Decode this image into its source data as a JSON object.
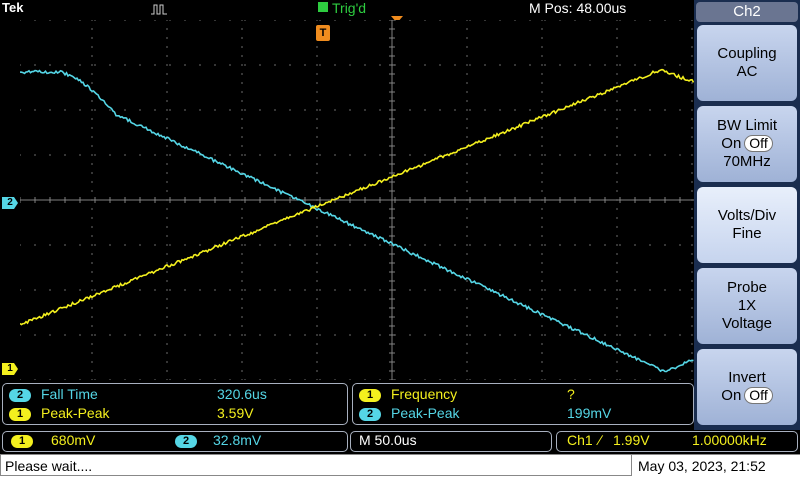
{
  "topbar": {
    "brand": "Tek",
    "trigger_status": "Trig'd",
    "horizontal_position": "M Pos: 48.00us"
  },
  "markers": {
    "trigger_marker": "T",
    "ch1_marker": "1",
    "ch2_marker": "2"
  },
  "colors": {
    "ch1": "#f4f01e",
    "ch2": "#55d6e6",
    "trigger": "#f08c1e",
    "trig_status": "#2ecc40",
    "grid": "#808080",
    "menu_bg": "#1a2d4f"
  },
  "measurements": {
    "left": [
      {
        "channel": "2",
        "label": "Fall Time",
        "value": "320.6us"
      },
      {
        "channel": "1",
        "label": "Peak-Peak",
        "value": "3.59V"
      }
    ],
    "right": [
      {
        "channel": "1",
        "label": "Frequency",
        "value": "?"
      },
      {
        "channel": "2",
        "label": "Peak-Peak",
        "value": "199mV"
      }
    ]
  },
  "scales": {
    "ch1_badge": "1",
    "ch1_scale": "680mV",
    "ch2_badge": "2",
    "ch2_scale": "32.8mV",
    "timebase": "M 50.0us",
    "trigger_source": "Ch1",
    "trigger_slope": "∕",
    "trigger_level": "1.99V",
    "trigger_frequency": "1.00000kHz"
  },
  "status": {
    "message": "Please wait....",
    "datetime": "May 03, 2023, 21:52"
  },
  "side_menu": {
    "title": "Ch2",
    "coupling": {
      "label": "Coupling",
      "value": "AC"
    },
    "bw_limit": {
      "label": "BW Limit",
      "on": "On",
      "off": "Off",
      "value": "70MHz"
    },
    "volts_div": {
      "label": "Volts/Div",
      "value": "Fine"
    },
    "probe": {
      "label": "Probe",
      "value1": "1X",
      "value2": "Voltage"
    },
    "invert": {
      "label": "Invert",
      "on": "On",
      "off": "Off"
    }
  },
  "waveforms": {
    "ch1": {
      "description_points": [
        [
          0,
          3.75
        ],
        [
          0.3,
          7.1
        ],
        [
          0.35,
          6.9
        ],
        [
          0.38,
          7.3
        ],
        [
          0.45,
          7.15
        ],
        [
          0.5,
          7.5
        ],
        [
          0.55,
          7.35
        ],
        [
          0.6,
          7.7
        ],
        [
          0.65,
          7.55
        ],
        [
          0.7,
          7.85
        ],
        [
          0.75,
          7.7
        ],
        [
          0.8,
          8.0
        ],
        [
          0.85,
          7.9
        ],
        [
          0.9,
          8.25
        ],
        [
          0.95,
          8.1
        ],
        [
          1.0,
          8.4
        ],
        [
          1.05,
          8.3
        ],
        [
          1.1,
          8.6
        ],
        [
          1.2,
          8.75
        ],
        [
          1.4,
          9.05
        ],
        [
          1.6,
          9.4
        ],
        [
          1.8,
          9.7
        ],
        [
          2.0,
          10.05
        ],
        [
          2.2,
          10.35
        ],
        [
          2.4,
          10.7
        ],
        [
          2.6,
          11.0
        ],
        [
          2.8,
          11.3
        ],
        [
          3.0,
          11.65
        ],
        [
          3.2,
          11.95
        ],
        [
          3.4,
          12.3
        ],
        [
          3.6,
          12.6
        ],
        [
          3.8,
          12.95
        ],
        [
          4.0,
          13.25
        ],
        [
          4.2,
          13.6
        ],
        [
          4.4,
          13.9
        ],
        [
          4.6,
          14.25
        ],
        [
          4.8,
          14.55
        ],
        [
          5.0,
          14.9
        ],
        [
          5.2,
          15.2
        ],
        [
          5.4,
          15.55
        ],
        [
          5.6,
          15.85
        ],
        [
          5.8,
          16.2
        ],
        [
          6.0,
          16.5
        ],
        [
          6.2,
          16.85
        ],
        [
          6.4,
          17.15
        ],
        [
          6.6,
          17.5
        ],
        [
          6.8,
          17.8
        ],
        [
          7.0,
          18.15
        ],
        [
          7.2,
          18.45
        ],
        [
          7.4,
          18.8
        ],
        [
          7.6,
          19.1
        ],
        [
          7.8,
          19.45
        ],
        [
          8.0,
          19.75
        ],
        [
          8.2,
          20.1
        ],
        [
          8.4,
          20.4
        ],
        [
          8.6,
          20.75
        ],
        [
          8.8,
          21.05
        ],
        [
          9.0,
          21.4
        ],
        [
          9.2,
          21.7
        ],
        [
          9.4,
          22.05
        ],
        [
          9.6,
          22.35
        ],
        [
          9.8,
          22.7
        ],
        [
          10.0,
          23.0
        ]
      ]
    }
  }
}
